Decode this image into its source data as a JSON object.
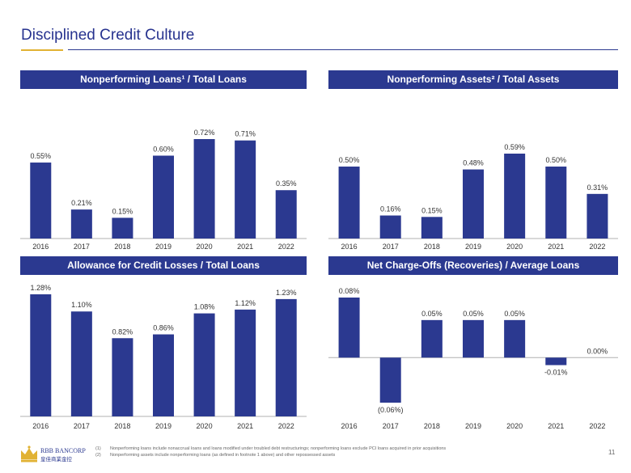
{
  "page": {
    "title": "Disciplined Credit Culture",
    "page_number": "11",
    "footnotes": [
      {
        "num": "(1)",
        "text": "Nonperforming loans include nonaccrual loans and loans modified under troubled debt restructurings; nonperforming loans exclude PCI loans acquired in prior acquisitions"
      },
      {
        "num": "(2)",
        "text": "Nonperforming assets include nonperforming loans (as defined in footnote 1 above) and other repossessed assets"
      }
    ],
    "logo": {
      "brand": "RBB BANCORP",
      "chinese": "皇佳商業金控",
      "colors": {
        "gold": "#e1b233",
        "navy": "#2b3990"
      }
    }
  },
  "chart_data": [
    {
      "type": "bar",
      "title": "Nonperforming Loans¹ / Total Loans",
      "categories": [
        "2016",
        "2017",
        "2018",
        "2019",
        "2020",
        "2021",
        "2022"
      ],
      "values": [
        0.55,
        0.21,
        0.15,
        0.6,
        0.72,
        0.71,
        0.35
      ],
      "labels": [
        "0.55%",
        "0.21%",
        "0.15%",
        "0.60%",
        "0.72%",
        "0.71%",
        "0.35%"
      ],
      "ylim": [
        0,
        0.72
      ],
      "color": "#2b3990"
    },
    {
      "type": "bar",
      "title": "Nonperforming Assets² / Total Assets",
      "categories": [
        "2016",
        "2017",
        "2018",
        "2019",
        "2020",
        "2021",
        "2022"
      ],
      "values": [
        0.5,
        0.16,
        0.15,
        0.48,
        0.59,
        0.5,
        0.31
      ],
      "labels": [
        "0.50%",
        "0.16%",
        "0.15%",
        "0.48%",
        "0.59%",
        "0.50%",
        "0.31%"
      ],
      "ylim": [
        0,
        0.59
      ],
      "color": "#2b3990"
    },
    {
      "type": "bar",
      "title": "Allowance for Credit Losses / Total Loans",
      "categories": [
        "2016",
        "2017",
        "2018",
        "2019",
        "2020",
        "2021",
        "2022"
      ],
      "values": [
        1.28,
        1.1,
        0.82,
        0.86,
        1.08,
        1.12,
        1.23
      ],
      "labels": [
        "1.28%",
        "1.10%",
        "0.82%",
        "0.86%",
        "1.08%",
        "1.12%",
        "1.23%"
      ],
      "ylim": [
        0,
        1.28
      ],
      "color": "#2b3990"
    },
    {
      "type": "bar",
      "title": "Net Charge-Offs (Recoveries) / Average Loans",
      "categories": [
        "2016",
        "2017",
        "2018",
        "2019",
        "2020",
        "2021",
        "2022"
      ],
      "values": [
        0.08,
        -0.06,
        0.05,
        0.05,
        0.05,
        -0.01,
        0.0
      ],
      "labels": [
        "0.08%",
        "(0.06%)",
        "0.05%",
        "0.05%",
        "0.05%",
        "-0.01%",
        "0.00%"
      ],
      "ylim": [
        -0.06,
        0.08
      ],
      "color": "#2b3990"
    }
  ]
}
